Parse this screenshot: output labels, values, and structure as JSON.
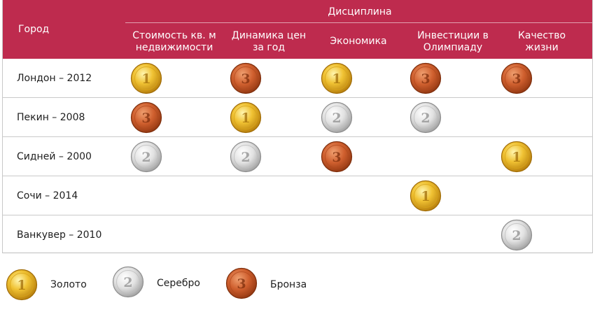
{
  "header": {
    "city_label": "Город",
    "group_label": "Дисциплина",
    "columns": [
      {
        "line1": "Стоимость кв. м",
        "line2": "недвижимости"
      },
      {
        "line1": "Динамика цен",
        "line2": "за год"
      },
      {
        "line1": "Экономика",
        "line2": ""
      },
      {
        "line1": "Инвестиции в",
        "line2": "Олимпиаду"
      },
      {
        "line1": "Качество",
        "line2": "жизни"
      }
    ]
  },
  "chart_data": {
    "type": "table",
    "rows": [
      {
        "city": "Лондон – 2012",
        "medals": [
          "gold",
          "bronze",
          "gold",
          "bronze",
          "bronze"
        ]
      },
      {
        "city": "Пекин – 2008",
        "medals": [
          "bronze",
          "gold",
          "silver",
          "silver",
          ""
        ]
      },
      {
        "city": "Сидней – 2000",
        "medals": [
          "silver",
          "silver",
          "bronze",
          "",
          "gold"
        ]
      },
      {
        "city": "Сочи – 2014",
        "medals": [
          "",
          "",
          "",
          "gold",
          ""
        ]
      },
      {
        "city": "Ванкувер – 2010",
        "medals": [
          "",
          "",
          "",
          "",
          "silver"
        ]
      }
    ]
  },
  "legend": [
    {
      "type": "gold",
      "label": "Золото"
    },
    {
      "type": "silver",
      "label": "Серебро"
    },
    {
      "type": "bronze",
      "label": "Бронза"
    }
  ],
  "colors": {
    "header": "#be2b4e",
    "gold": "#e6b422",
    "silver": "#d4d4d4",
    "bronze": "#c4572b"
  }
}
